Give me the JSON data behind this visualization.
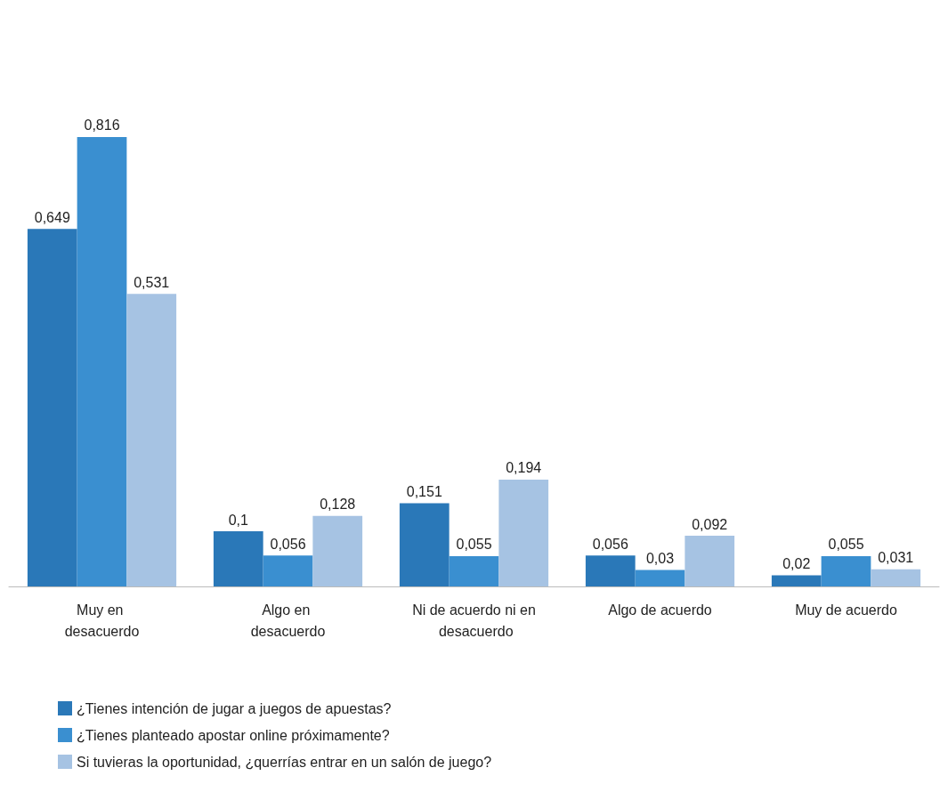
{
  "chart_data": {
    "type": "bar",
    "categories": [
      "Muy en desacuerdo",
      "Algo en desacuerdo",
      "Ni de acuerdo ni en desacuerdo",
      "Algo de acuerdo",
      "Muy de acuerdo"
    ],
    "series": [
      {
        "name": "¿Tienes intención de jugar a juegos de apuestas?",
        "color": "#2a78b8",
        "values": [
          0.649,
          0.1,
          0.151,
          0.056,
          0.02
        ],
        "value_labels": [
          "0,649",
          "0,1",
          "0,151",
          "0,056",
          "0,02"
        ]
      },
      {
        "name": "¿Tienes planteado apostar online próximamente?",
        "color": "#3a8fd0",
        "values": [
          0.816,
          0.056,
          0.055,
          0.03,
          0.055
        ],
        "value_labels": [
          "0,816",
          "0,056",
          "0,055",
          "0,03",
          "0,055"
        ]
      },
      {
        "name": "Si tuvieras la oportunidad, ¿querrías entrar en un salón de juego?",
        "color": "#a6c3e3",
        "values": [
          0.531,
          0.128,
          0.194,
          0.092,
          0.031
        ],
        "value_labels": [
          "0,531",
          "0,128",
          "0,194",
          "0,092",
          "0,031"
        ]
      }
    ],
    "legend": "bottom",
    "grid": false
  }
}
